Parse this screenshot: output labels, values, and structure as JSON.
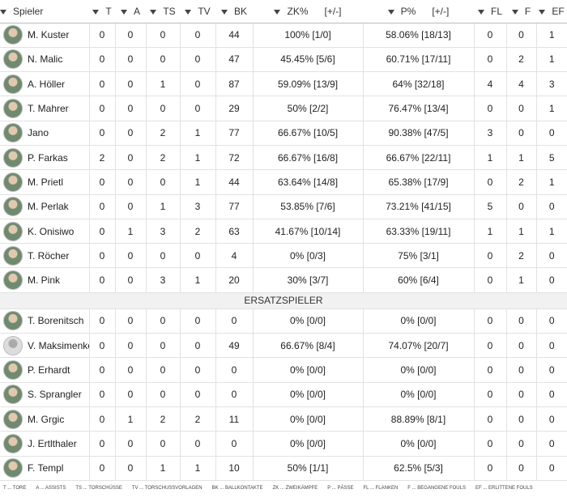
{
  "header": [
    [
      "Spieler"
    ],
    [
      "T"
    ],
    [
      "A"
    ],
    [
      "TS"
    ],
    [
      "TV"
    ],
    [
      "BK"
    ],
    [
      "ZK%",
      "[+/-]"
    ],
    [
      "P%",
      "[+/-]"
    ],
    [
      "FL"
    ],
    [
      "F"
    ],
    [
      "EF"
    ]
  ],
  "starters": [
    {
      "name": "M. Kuster",
      "values": [
        0,
        0,
        0,
        0,
        44,
        "100% [1/0]",
        "58.06% [18/13]",
        0,
        0,
        1
      ]
    },
    {
      "name": "N. Malic",
      "values": [
        0,
        0,
        0,
        0,
        47,
        "45.45% [5/6]",
        "60.71% [17/11]",
        0,
        2,
        1
      ]
    },
    {
      "name": "A. Höller",
      "values": [
        0,
        0,
        1,
        0,
        87,
        "59.09% [13/9]",
        "64% [32/18]",
        4,
        4,
        3
      ]
    },
    {
      "name": "T. Mahrer",
      "values": [
        0,
        0,
        0,
        0,
        29,
        "50% [2/2]",
        "76.47% [13/4]",
        0,
        0,
        1
      ]
    },
    {
      "name": "Jano",
      "values": [
        0,
        0,
        2,
        1,
        77,
        "66.67% [10/5]",
        "90.38% [47/5]",
        3,
        0,
        0
      ]
    },
    {
      "name": "P. Farkas",
      "values": [
        2,
        0,
        2,
        1,
        72,
        "66.67% [16/8]",
        "66.67% [22/11]",
        1,
        1,
        5
      ]
    },
    {
      "name": "M. Prietl",
      "values": [
        0,
        0,
        0,
        1,
        44,
        "63.64% [14/8]",
        "65.38% [17/9]",
        0,
        2,
        1
      ]
    },
    {
      "name": "M. Perlak",
      "values": [
        0,
        0,
        1,
        3,
        77,
        "53.85% [7/6]",
        "73.21% [41/15]",
        5,
        0,
        0
      ]
    },
    {
      "name": "K. Onisiwo",
      "values": [
        0,
        1,
        3,
        2,
        63,
        "41.67% [10/14]",
        "63.33% [19/11]",
        1,
        1,
        1
      ]
    },
    {
      "name": "T. Röcher",
      "values": [
        0,
        0,
        0,
        0,
        4,
        "0% [0/3]",
        "75% [3/1]",
        0,
        2,
        0
      ]
    },
    {
      "name": "M. Pink",
      "values": [
        0,
        0,
        3,
        1,
        20,
        "30% [3/7]",
        "60% [6/4]",
        0,
        1,
        0
      ]
    }
  ],
  "section": "ERSATZSPIELER",
  "substitutes": [
    {
      "name": "T. Borenitsch",
      "values": [
        0,
        0,
        0,
        0,
        0,
        "0% [0/0]",
        "0% [0/0]",
        0,
        0,
        0
      ]
    },
    {
      "name": "V. Maksimenko",
      "values": [
        0,
        0,
        0,
        0,
        49,
        "66.67% [8/4]",
        "74.07% [20/7]",
        0,
        0,
        0
      ]
    },
    {
      "name": "P. Erhardt",
      "values": [
        0,
        0,
        0,
        0,
        0,
        "0% [0/0]",
        "0% [0/0]",
        0,
        0,
        0
      ]
    },
    {
      "name": "S. Sprangler",
      "values": [
        0,
        0,
        0,
        0,
        0,
        "0% [0/0]",
        "0% [0/0]",
        0,
        0,
        0
      ]
    },
    {
      "name": "M. Grgic",
      "values": [
        0,
        1,
        2,
        2,
        11,
        "0% [0/0]",
        "88.89% [8/1]",
        0,
        0,
        0
      ]
    },
    {
      "name": "J. Ertlthaler",
      "values": [
        0,
        0,
        0,
        0,
        0,
        "0% [0/0]",
        "0% [0/0]",
        0,
        0,
        0
      ]
    },
    {
      "name": "F. Templ",
      "values": [
        0,
        0,
        1,
        1,
        10,
        "50% [1/1]",
        "62.5% [5/3]",
        0,
        0,
        0
      ]
    }
  ],
  "legend": [
    "T ... TORE",
    "A ... ASSISTS",
    "TS ... TORSCHÜSSE",
    "TV ... TORSCHUSSVORLAGEN",
    "BK ... BALLKONTAKTE",
    "ZK ... ZWEIKÄMPFE",
    "P ... PÄSSE",
    "FL ... FLANKEN",
    "F ... BEGANGENE FOULS",
    "EF ... ERLITTENE FOULS"
  ]
}
